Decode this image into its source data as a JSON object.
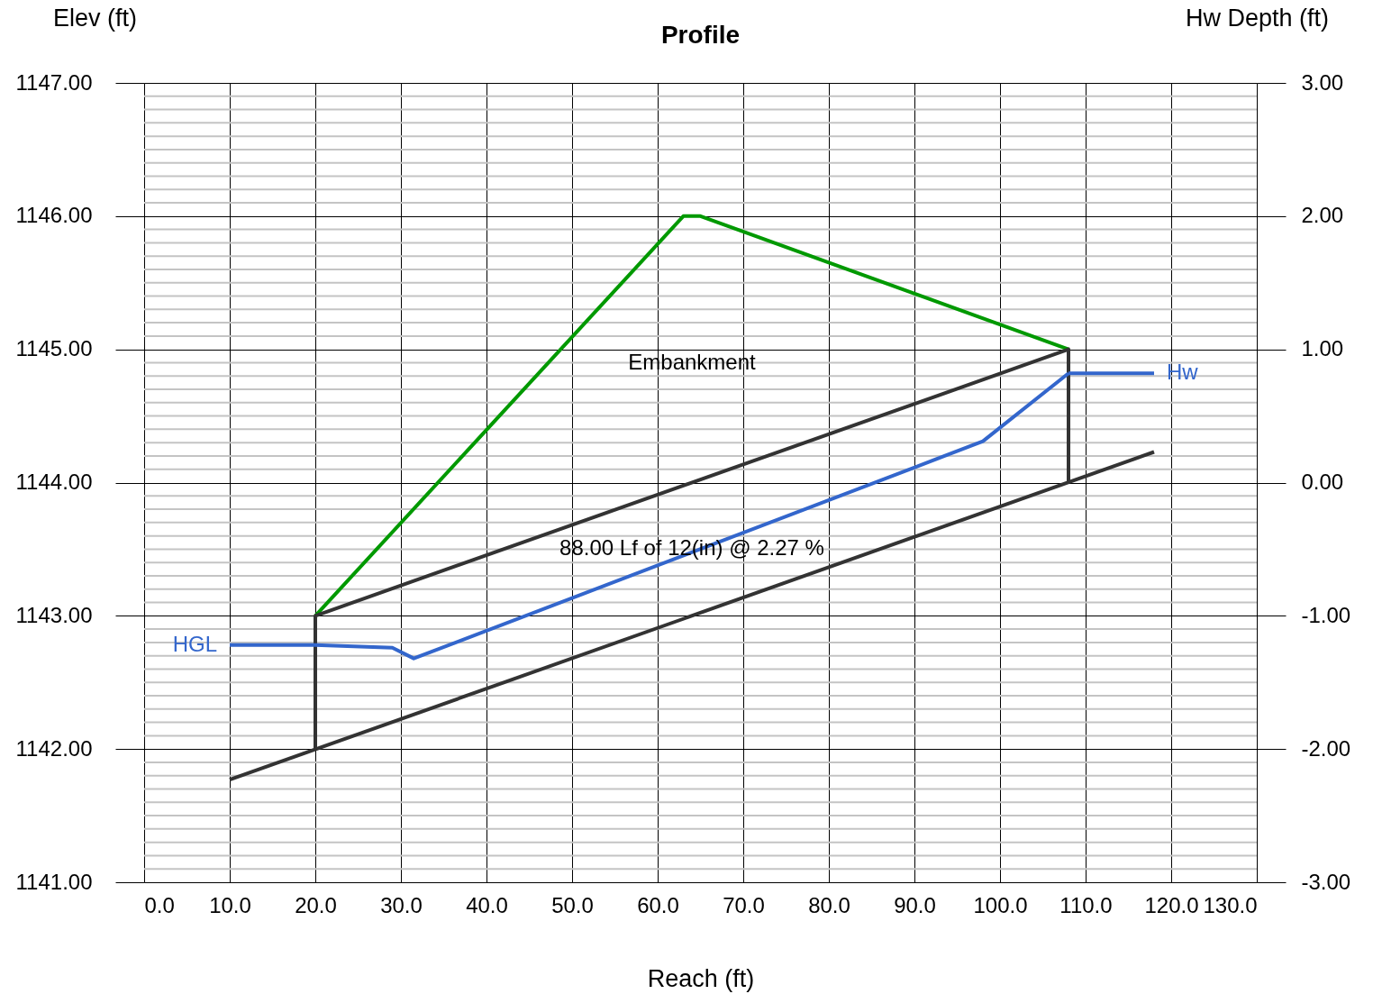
{
  "chart_data": {
    "type": "line",
    "title": "Profile",
    "xlabel": "Reach (ft)",
    "ylabel": "Elev (ft)",
    "y2label": "Hw Depth (ft)",
    "legend": false,
    "grid": true,
    "xlim": [
      0,
      130
    ],
    "xticks": [
      {
        "value": 0,
        "label": "0.0"
      },
      {
        "value": 10,
        "label": "10.0"
      },
      {
        "value": 20,
        "label": "20.0"
      },
      {
        "value": 30,
        "label": "30.0"
      },
      {
        "value": 40,
        "label": "40.0"
      },
      {
        "value": 50,
        "label": "50.0"
      },
      {
        "value": 60,
        "label": "60.0"
      },
      {
        "value": 70,
        "label": "70.0"
      },
      {
        "value": 80,
        "label": "80.0"
      },
      {
        "value": 90,
        "label": "90.0"
      },
      {
        "value": 100,
        "label": "100.0"
      },
      {
        "value": 110,
        "label": "110.0"
      },
      {
        "value": 120,
        "label": "120.0"
      },
      {
        "value": 130,
        "label": "130.0"
      }
    ],
    "ylim": [
      1141,
      1147
    ],
    "yticks": [
      {
        "value": 1141,
        "label": "1141.00"
      },
      {
        "value": 1141.1,
        "label": null
      },
      {
        "value": 1141.2,
        "label": null
      },
      {
        "value": 1141.3,
        "label": null
      },
      {
        "value": 1141.4,
        "label": null
      },
      {
        "value": 1141.5,
        "label": null
      },
      {
        "value": 1141.6,
        "label": null
      },
      {
        "value": 1141.7,
        "label": null
      },
      {
        "value": 1141.8,
        "label": null
      },
      {
        "value": 1141.9,
        "label": null
      },
      {
        "value": 1142,
        "label": "1142.00"
      },
      {
        "value": 1142.1,
        "label": null
      },
      {
        "value": 1142.2,
        "label": null
      },
      {
        "value": 1142.3,
        "label": null
      },
      {
        "value": 1142.4,
        "label": null
      },
      {
        "value": 1142.5,
        "label": null
      },
      {
        "value": 1142.6,
        "label": null
      },
      {
        "value": 1142.7,
        "label": null
      },
      {
        "value": 1142.8,
        "label": null
      },
      {
        "value": 1142.9,
        "label": null
      },
      {
        "value": 1143,
        "label": "1143.00"
      },
      {
        "value": 1143.1,
        "label": null
      },
      {
        "value": 1143.2,
        "label": null
      },
      {
        "value": 1143.3,
        "label": null
      },
      {
        "value": 1143.4,
        "label": null
      },
      {
        "value": 1143.5,
        "label": null
      },
      {
        "value": 1143.6,
        "label": null
      },
      {
        "value": 1143.7,
        "label": null
      },
      {
        "value": 1143.8,
        "label": null
      },
      {
        "value": 1143.9,
        "label": null
      },
      {
        "value": 1144,
        "label": "1144.00"
      },
      {
        "value": 1144.1,
        "label": null
      },
      {
        "value": 1144.2,
        "label": null
      },
      {
        "value": 1144.3,
        "label": null
      },
      {
        "value": 1144.4,
        "label": null
      },
      {
        "value": 1144.5,
        "label": null
      },
      {
        "value": 1144.6,
        "label": null
      },
      {
        "value": 1144.7,
        "label": null
      },
      {
        "value": 1144.8,
        "label": null
      },
      {
        "value": 1144.9,
        "label": null
      },
      {
        "value": 1145,
        "label": "1145.00"
      },
      {
        "value": 1145.1,
        "label": null
      },
      {
        "value": 1145.2,
        "label": null
      },
      {
        "value": 1145.3,
        "label": null
      },
      {
        "value": 1145.4,
        "label": null
      },
      {
        "value": 1145.5,
        "label": null
      },
      {
        "value": 1145.6,
        "label": null
      },
      {
        "value": 1145.7,
        "label": null
      },
      {
        "value": 1145.8,
        "label": null
      },
      {
        "value": 1145.9,
        "label": null
      },
      {
        "value": 1146,
        "label": "1146.00"
      },
      {
        "value": 1146.1,
        "label": null
      },
      {
        "value": 1146.2,
        "label": null
      },
      {
        "value": 1146.3,
        "label": null
      },
      {
        "value": 1146.4,
        "label": null
      },
      {
        "value": 1146.5,
        "label": null
      },
      {
        "value": 1146.6,
        "label": null
      },
      {
        "value": 1146.7,
        "label": null
      },
      {
        "value": 1146.8,
        "label": null
      },
      {
        "value": 1146.9,
        "label": null
      },
      {
        "value": 1147,
        "label": "1147.00"
      }
    ],
    "y2lim": [
      -3,
      3
    ],
    "y2ticks": [
      {
        "value": -3,
        "label": "-3.00"
      },
      {
        "value": -2,
        "label": "-2.00"
      },
      {
        "value": -1,
        "label": "-1.00"
      },
      {
        "value": 0,
        "label": "0.00"
      },
      {
        "value": 1,
        "label": "1.00"
      },
      {
        "value": 2,
        "label": "2.00"
      },
      {
        "value": 3,
        "label": "3.00"
      }
    ],
    "series": [
      {
        "color": "#009900",
        "x": [
          20,
          63,
          65,
          108
        ],
        "values": [
          1143,
          1146,
          1146,
          1145
        ]
      },
      {
        "color": "#333333",
        "x": [
          10,
          118
        ],
        "values": [
          1141.77,
          1144.23
        ]
      },
      {
        "color": "#333333",
        "x": [
          20,
          20,
          108,
          108
        ],
        "values": [
          1142,
          1143,
          1145,
          1144
        ]
      },
      {
        "name": "HGL",
        "color": "#3366cc",
        "x": [
          10,
          20,
          29,
          31.5,
          98,
          108
        ],
        "values": [
          1142.78,
          1142.78,
          1142.76,
          1142.68,
          1144.31,
          1144.82
        ]
      },
      {
        "name": "Hw",
        "color": "#3366cc",
        "x": [
          108,
          118
        ],
        "values": [
          1144.82,
          1144.82
        ]
      }
    ],
    "annotations": [
      "Embankment",
      {
        "text": "88.00 Lf of 12(in) @ 2.27 %",
        "x": 64,
        "y": 1143.5
      }
    ]
  }
}
